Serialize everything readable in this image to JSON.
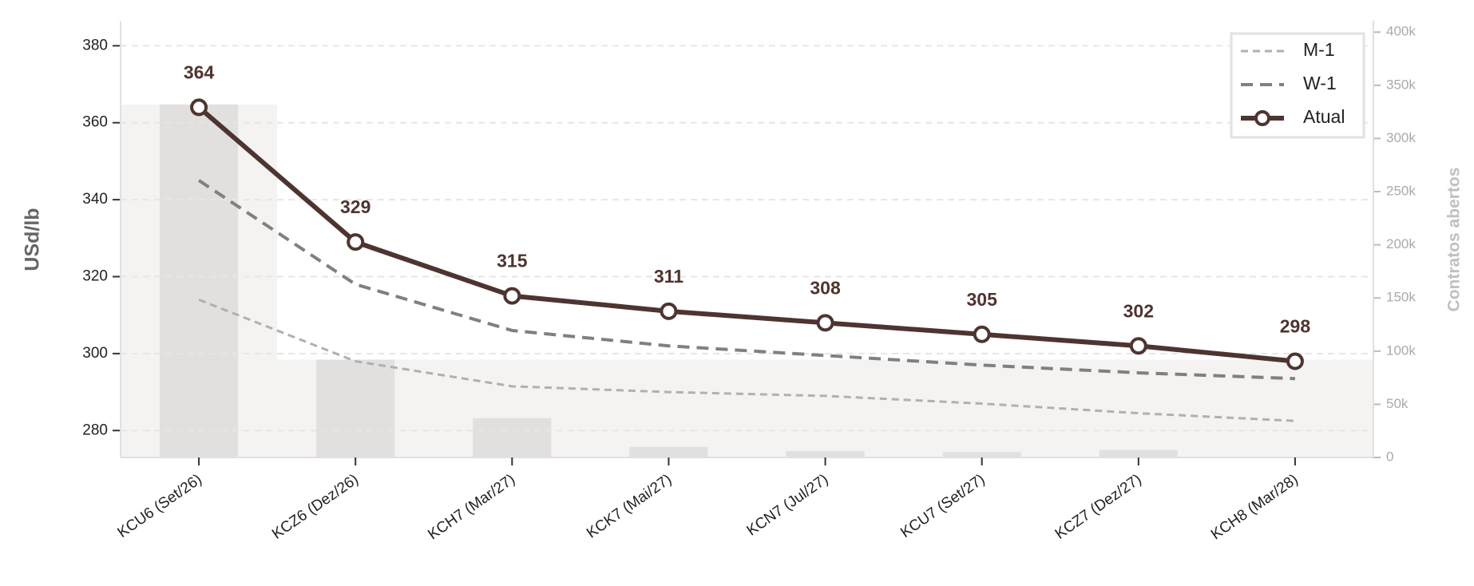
{
  "chart_data": {
    "type": "line",
    "y_label": "USd/lb",
    "y2_label": "Contratos abertos",
    "categories": [
      "KCU6 (Set/26)",
      "KCZ6 (Dez/26)",
      "KCH7 (Mar/27)",
      "KCK7 (Mai/27)",
      "KCN7 (Jul/27)",
      "KCU7 (Set/27)",
      "KCZ7 (Dez/27)",
      "KCH8 (Mar/28)"
    ],
    "series": [
      {
        "name": "M-1",
        "color": "#b0b0b0",
        "dash": "9 6",
        "width": 3,
        "markers": false,
        "values": [
          314,
          298,
          291.5,
          290,
          289,
          287,
          284.5,
          282.5
        ]
      },
      {
        "name": "W-1",
        "color": "#808080",
        "dash": "15 9",
        "width": 4,
        "markers": false,
        "values": [
          345,
          318,
          306,
          302,
          299.5,
          297,
          295,
          293.5
        ]
      },
      {
        "name": "Atual",
        "color": "#4e3430",
        "width": 6,
        "markers": true,
        "data_labels": true,
        "values": [
          364,
          329,
          315,
          311,
          308,
          305,
          302,
          298
        ]
      }
    ],
    "bars": {
      "axis": "y2",
      "color": "#e2e0de",
      "background": "#f4f3f2",
      "values": [
        332000,
        92000,
        37000,
        10000,
        6000,
        5000,
        7000,
        0
      ]
    },
    "ylim": [
      273,
      386.5
    ],
    "yticks": [
      280,
      300,
      320,
      340,
      360,
      380
    ],
    "y2lim": [
      0,
      410700
    ],
    "y2ticks": [
      0,
      {
        "value": 50000,
        "label": "50k"
      },
      {
        "value": 100000,
        "label": "100k"
      },
      {
        "value": 150000,
        "label": "150k"
      },
      {
        "value": 200000,
        "label": "200k"
      },
      {
        "value": 250000,
        "label": "250k"
      },
      {
        "value": 300000,
        "label": "300k"
      },
      {
        "value": 350000,
        "label": "350k"
      },
      {
        "value": 400000,
        "label": "400k"
      }
    ],
    "grid": true,
    "legend": "upper right"
  }
}
